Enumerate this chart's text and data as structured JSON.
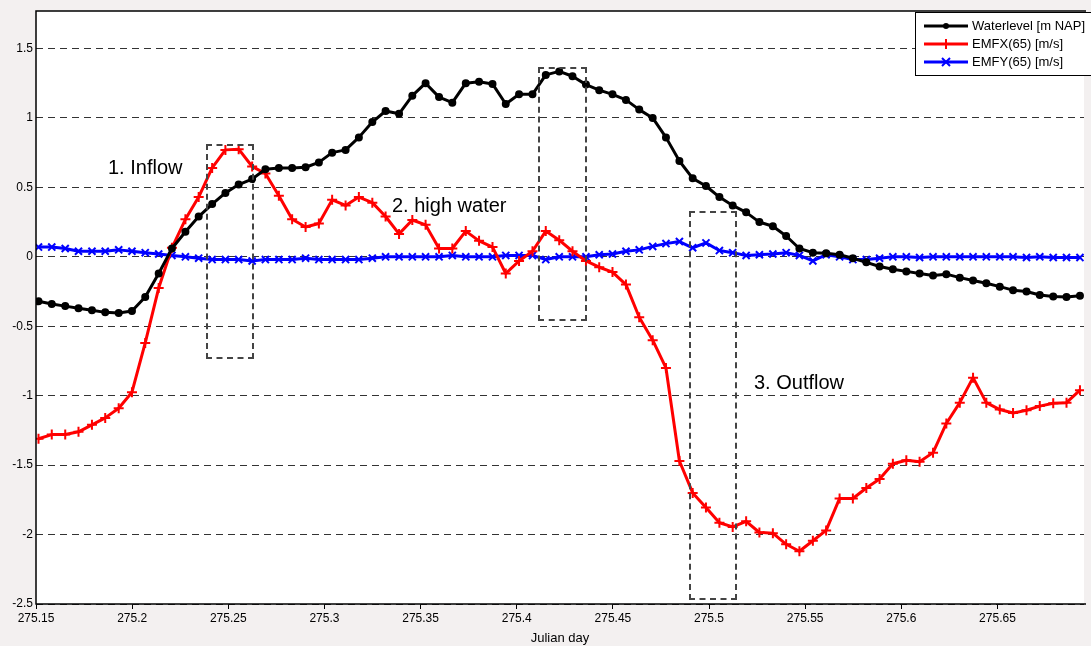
{
  "chart_data": {
    "type": "line",
    "xlabel": "Julian day",
    "xlim": [
      275.15,
      275.695
    ],
    "xticks": [
      275.15,
      275.2,
      275.25,
      275.3,
      275.35,
      275.4,
      275.45,
      275.5,
      275.55,
      275.6,
      275.65
    ],
    "ylim": [
      -2.5,
      1.77
    ],
    "yticks": [
      -2.5,
      -2,
      -1.5,
      -1,
      -0.5,
      0,
      0.5,
      1,
      1.5
    ],
    "grid": "y",
    "legend": "top right",
    "line_style": "solid",
    "annotations": [
      "1. Inflow",
      "2. high water",
      "3. Outflow"
    ],
    "x": [
      275.1513,
      275.1582,
      275.1652,
      275.1721,
      275.1791,
      275.186,
      275.193,
      275.1999,
      275.2068,
      275.2138,
      275.2207,
      275.2277,
      275.2346,
      275.2416,
      275.2485,
      275.2554,
      275.2624,
      275.2693,
      275.2763,
      275.2832,
      275.2902,
      275.2971,
      275.304,
      275.311,
      275.3179,
      275.3249,
      275.3318,
      275.3388,
      275.3457,
      275.3526,
      275.3596,
      275.3665,
      275.3735,
      275.3804,
      275.3874,
      275.3943,
      275.4012,
      275.4082,
      275.4151,
      275.4221,
      275.429,
      275.436,
      275.4429,
      275.4498,
      275.4568,
      275.4637,
      275.4707,
      275.4776,
      275.4846,
      275.4915,
      275.4984,
      275.5054,
      275.5123,
      275.5193,
      275.5262,
      275.5332,
      275.5401,
      275.547,
      275.554,
      275.5609,
      275.5679,
      275.5748,
      275.5818,
      275.5887,
      275.5956,
      275.6026,
      275.6095,
      275.6165,
      275.6234,
      275.6304,
      275.6373,
      275.6442,
      275.6512,
      275.6581,
      275.6651,
      275.672,
      275.679,
      275.6859,
      275.6929
    ],
    "series": [
      {
        "name": "Waterlevel [m NAP]",
        "color": "#000000",
        "marker": "circle",
        "values": [
          -0.32,
          -0.34,
          -0.355,
          -0.37,
          -0.385,
          -0.4,
          -0.405,
          -0.39,
          -0.29,
          -0.12,
          0.06,
          0.18,
          0.29,
          0.38,
          0.46,
          0.52,
          0.56,
          0.63,
          0.64,
          0.64,
          0.645,
          0.68,
          0.75,
          0.77,
          0.86,
          0.97,
          1.05,
          1.03,
          1.16,
          1.25,
          1.15,
          1.11,
          1.25,
          1.26,
          1.245,
          1.1,
          1.17,
          1.17,
          1.31,
          1.335,
          1.3,
          1.24,
          1.2,
          1.17,
          1.13,
          1.06,
          1.0,
          0.86,
          0.69,
          0.565,
          0.51,
          0.43,
          0.37,
          0.32,
          0.25,
          0.22,
          0.15,
          0.06,
          0.03,
          0.025,
          0.015,
          -0.01,
          -0.04,
          -0.07,
          -0.09,
          -0.105,
          -0.12,
          -0.135,
          -0.125,
          -0.15,
          -0.17,
          -0.19,
          -0.215,
          -0.24,
          -0.25,
          -0.275,
          -0.285,
          -0.29,
          -0.28
        ]
      },
      {
        "name": "EMFX(65) [m/s]",
        "color": "#ff0000",
        "marker": "cross",
        "values": [
          -1.31,
          -1.28,
          -1.28,
          -1.26,
          -1.21,
          -1.16,
          -1.09,
          -0.975,
          -0.62,
          -0.225,
          0.065,
          0.27,
          0.43,
          0.64,
          0.77,
          0.775,
          0.65,
          0.6,
          0.44,
          0.27,
          0.215,
          0.24,
          0.41,
          0.37,
          0.43,
          0.39,
          0.29,
          0.165,
          0.265,
          0.23,
          0.06,
          0.06,
          0.185,
          0.115,
          0.07,
          -0.12,
          -0.03,
          0.04,
          0.185,
          0.12,
          0.04,
          -0.03,
          -0.075,
          -0.11,
          -0.2,
          -0.435,
          -0.6,
          -0.8,
          -1.47,
          -1.7,
          -1.805,
          -1.915,
          -1.945,
          -1.905,
          -1.985,
          -1.99,
          -2.07,
          -2.12,
          -2.045,
          -1.97,
          -1.74,
          -1.74,
          -1.665,
          -1.6,
          -1.49,
          -1.465,
          -1.475,
          -1.41,
          -1.2,
          -1.05,
          -0.87,
          -1.05,
          -1.1,
          -1.125,
          -1.105,
          -1.075,
          -1.055,
          -1.05,
          -0.96
        ]
      },
      {
        "name": "EMFY(65) [m/s]",
        "color": "#0000ff",
        "marker": "x",
        "values": [
          0.07,
          0.07,
          0.06,
          0.04,
          0.04,
          0.04,
          0.05,
          0.04,
          0.03,
          0.02,
          0.01,
          0.0,
          -0.01,
          -0.02,
          -0.02,
          -0.02,
          -0.03,
          -0.02,
          -0.02,
          -0.02,
          -0.01,
          -0.02,
          -0.02,
          -0.02,
          -0.02,
          -0.01,
          0.0,
          0.0,
          0.0,
          0.0,
          0.0,
          0.01,
          0.0,
          0.0,
          0.0,
          0.01,
          0.01,
          0.01,
          -0.02,
          0.0,
          0.0,
          0.0,
          0.015,
          0.02,
          0.04,
          0.05,
          0.075,
          0.095,
          0.11,
          0.065,
          0.1,
          0.045,
          0.03,
          0.01,
          0.015,
          0.02,
          0.03,
          0.01,
          -0.03,
          0.015,
          0.0,
          -0.02,
          -0.02,
          -0.01,
          0.0,
          0.0,
          -0.005,
          0.0,
          0.0,
          0.0,
          0.0,
          0.0,
          0.0,
          0.0,
          -0.005,
          0.0,
          -0.005,
          -0.005,
          -0.005
        ]
      }
    ]
  }
}
